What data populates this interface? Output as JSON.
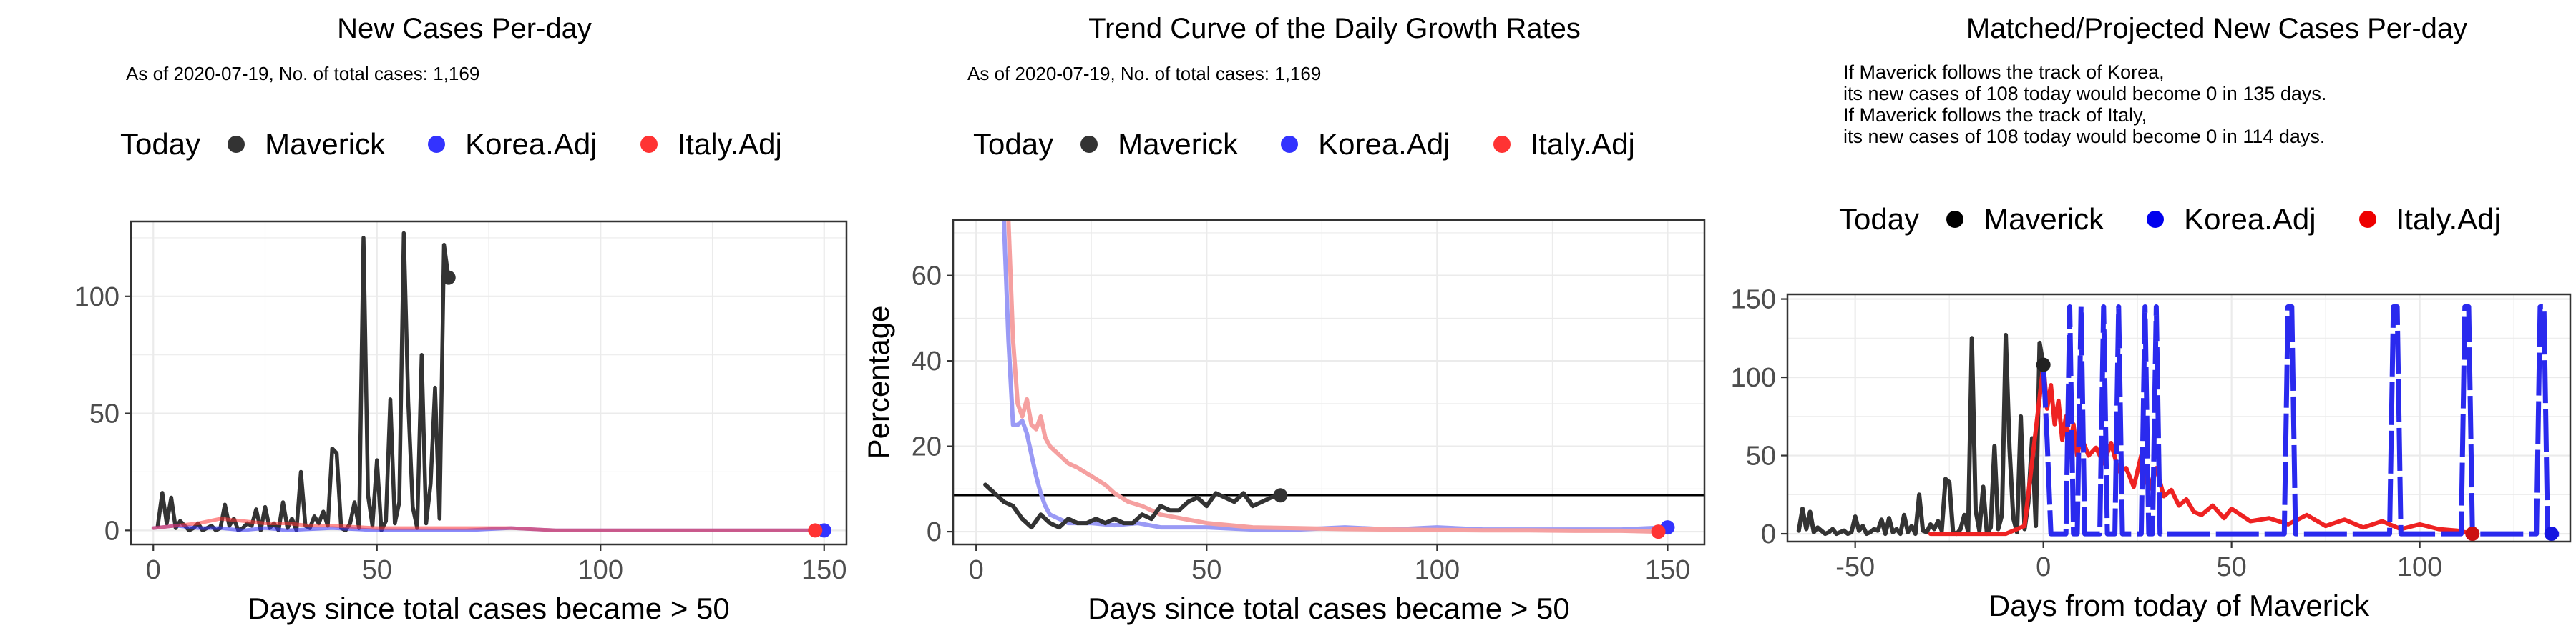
{
  "chart_data": [
    {
      "type": "line",
      "title": "New Cases Per-day",
      "subtitle": "As of 2020-07-19, No. of total cases: 1,169",
      "xlabel": "Days since total cases became > 50",
      "ylabel": "",
      "xlim": [
        -5,
        155
      ],
      "ylim": [
        -6,
        132
      ],
      "xticks": [
        0,
        50,
        100,
        150
      ],
      "yticks": [
        0,
        50,
        100
      ],
      "grid": true,
      "legend_position": "top",
      "legend_title": "Today",
      "legend": [
        {
          "name": "Maverick",
          "color": "#333333"
        },
        {
          "name": "Korea.Adj",
          "color": "#3333ff"
        },
        {
          "name": "Italy.Adj",
          "color": "#ff3333"
        }
      ],
      "series": [
        {
          "name": "Maverick",
          "color": "#333333",
          "x": [
            1,
            2,
            3,
            4,
            5,
            6,
            7,
            8,
            9,
            10,
            11,
            12,
            13,
            14,
            15,
            16,
            17,
            18,
            19,
            20,
            21,
            22,
            23,
            24,
            25,
            26,
            27,
            28,
            29,
            30,
            31,
            32,
            33,
            34,
            35,
            36,
            37,
            38,
            39,
            40,
            41,
            42,
            43,
            44,
            45,
            46,
            47,
            48,
            49,
            50,
            51,
            52,
            53,
            54,
            55,
            56,
            57,
            58,
            59,
            60,
            61,
            62,
            63,
            64,
            65,
            66
          ],
          "y": [
            2,
            16,
            3,
            14,
            1,
            4,
            2,
            0,
            1,
            3,
            0,
            1,
            2,
            0,
            1,
            11,
            2,
            5,
            0,
            1,
            3,
            2,
            9,
            0,
            10,
            1,
            3,
            0,
            12,
            1,
            5,
            0,
            25,
            2,
            1,
            6,
            3,
            8,
            2,
            35,
            33,
            1,
            0,
            3,
            12,
            1,
            125,
            15,
            2,
            30,
            0,
            4,
            56,
            3,
            12,
            127,
            55,
            10,
            1,
            75,
            3,
            20,
            61,
            5,
            122,
            108
          ]
        },
        {
          "name": "Korea.Adj",
          "color": "#3333ff",
          "x": [
            0,
            5,
            10,
            15,
            20,
            25,
            30,
            40,
            50,
            60,
            70,
            80,
            90,
            100,
            110,
            120,
            130,
            140,
            150
          ],
          "y": [
            1,
            2,
            1,
            1,
            0,
            1,
            0,
            1,
            0,
            0,
            0,
            1,
            0,
            0,
            0,
            0,
            0,
            0,
            0
          ]
        },
        {
          "name": "Italy.Adj",
          "color": "#ff3333",
          "x": [
            0,
            5,
            10,
            15,
            20,
            25,
            30,
            35,
            40,
            50,
            60,
            70,
            80,
            90,
            100,
            110,
            120,
            130,
            140,
            148
          ],
          "y": [
            1,
            2,
            3,
            5,
            4,
            3,
            3,
            2,
            2,
            1,
            1,
            1,
            1,
            0,
            0,
            0,
            0,
            0,
            0,
            0
          ]
        }
      ],
      "today_points": [
        {
          "name": "Maverick",
          "x": 66,
          "y": 108,
          "color": "#333333"
        },
        {
          "name": "Korea.Adj",
          "x": 150,
          "y": 0,
          "color": "#3333ff"
        },
        {
          "name": "Italy.Adj",
          "x": 148,
          "y": 0,
          "color": "#ff3333"
        }
      ]
    },
    {
      "type": "line",
      "title": "Trend Curve of the Daily Growth Rates",
      "subtitle": "As of 2020-07-19, No. of total cases: 1,169",
      "xlabel": "Days since total cases became > 50",
      "ylabel": "Percentage",
      "xlim": [
        -5,
        158
      ],
      "ylim": [
        -3,
        73
      ],
      "xticks": [
        0,
        50,
        100,
        150
      ],
      "yticks": [
        0,
        20,
        40,
        60
      ],
      "grid": true,
      "hline": 8.5,
      "legend_position": "top",
      "legend_title": "Today",
      "legend": [
        {
          "name": "Maverick",
          "color": "#333333"
        },
        {
          "name": "Korea.Adj",
          "color": "#3333ff"
        },
        {
          "name": "Italy.Adj",
          "color": "#ff3333"
        }
      ],
      "series": [
        {
          "name": "Korea.Adj",
          "color": "#9a9af5",
          "x": [
            6,
            7,
            8,
            9,
            10,
            11,
            12,
            13,
            14,
            15,
            16,
            18,
            20,
            25,
            30,
            35,
            40,
            45,
            50,
            60,
            70,
            80,
            90,
            100,
            110,
            120,
            130,
            140,
            150
          ],
          "y": [
            73,
            45,
            25,
            25,
            26,
            23,
            18,
            13,
            9,
            6,
            4,
            3,
            2,
            2,
            1.5,
            2,
            1,
            1,
            1,
            0.5,
            0.5,
            1,
            0.5,
            1,
            0.5,
            0.5,
            0.5,
            0.5,
            1
          ]
        },
        {
          "name": "Italy.Adj",
          "color": "#f5a0a0",
          "x": [
            7,
            8,
            9,
            10,
            11,
            12,
            13,
            14,
            15,
            16,
            18,
            20,
            22,
            25,
            28,
            30,
            33,
            36,
            40,
            45,
            50,
            55,
            60,
            70,
            80,
            90,
            100,
            110,
            120,
            130,
            140,
            148
          ],
          "y": [
            73,
            45,
            30,
            27,
            31,
            25,
            24,
            27,
            22,
            20,
            18,
            16,
            15,
            13,
            11,
            9,
            7,
            6,
            4,
            3,
            2,
            1.5,
            1,
            0.8,
            0.6,
            0.5,
            0.4,
            0.3,
            0.3,
            0.2,
            0.2,
            0
          ]
        },
        {
          "name": "Maverick",
          "color": "#333333",
          "x": [
            2,
            4,
            6,
            8,
            10,
            12,
            14,
            16,
            18,
            20,
            22,
            24,
            26,
            28,
            30,
            32,
            34,
            36,
            38,
            40,
            42,
            44,
            46,
            48,
            50,
            52,
            54,
            56,
            58,
            60,
            62,
            64,
            66
          ],
          "y": [
            11,
            9,
            7,
            6,
            3,
            1,
            4,
            2,
            1,
            3,
            2,
            2,
            3,
            2,
            3,
            2,
            2,
            4,
            3,
            6,
            5,
            5,
            7,
            8,
            6,
            9,
            8,
            7,
            9,
            6,
            7,
            8,
            8.5
          ]
        }
      ],
      "today_points": [
        {
          "name": "Maverick",
          "x": 66,
          "y": 8.5,
          "color": "#333333"
        },
        {
          "name": "Korea.Adj",
          "x": 150,
          "y": 1,
          "color": "#3333ff"
        },
        {
          "name": "Italy.Adj",
          "x": 148,
          "y": 0,
          "color": "#ff3333"
        }
      ]
    },
    {
      "type": "line",
      "title": "Matched/Projected New Cases Per-day",
      "notes": [
        "If Maverick follows the track of Korea,",
        "its new cases of 108 today would become 0 in 135 days.",
        "If Maverick follows the track of Italy,",
        "its new cases of 108 today would become 0 in 114 days."
      ],
      "xlabel": "Days from today of Maverick",
      "ylabel": "",
      "xlim": [
        -68,
        140
      ],
      "ylim": [
        -5,
        153
      ],
      "xticks": [
        -50,
        0,
        50,
        100
      ],
      "yticks": [
        0,
        50,
        100,
        150
      ],
      "grid": true,
      "legend_position": "top",
      "legend_title": "Today",
      "legend": [
        {
          "name": "Maverick",
          "color": "#000000"
        },
        {
          "name": "Korea.Adj",
          "color": "#0000ee"
        },
        {
          "name": "Italy.Adj",
          "color": "#ee0000"
        }
      ],
      "series": [
        {
          "name": "Maverick",
          "color": "#333333",
          "x": [
            -65,
            -64,
            -63,
            -62,
            -61,
            -60,
            -59,
            -58,
            -57,
            -56,
            -55,
            -54,
            -53,
            -52,
            -51,
            -50,
            -49,
            -48,
            -47,
            -46,
            -45,
            -44,
            -43,
            -42,
            -41,
            -40,
            -39,
            -38,
            -37,
            -36,
            -35,
            -34,
            -33,
            -32,
            -31,
            -30,
            -29,
            -28,
            -27,
            -26,
            -25,
            -24,
            -23,
            -22,
            -21,
            -20,
            -19,
            -18,
            -17,
            -16,
            -15,
            -14,
            -13,
            -12,
            -11,
            -10,
            -9,
            -8,
            -7,
            -6,
            -5,
            -4,
            -3,
            -2,
            -1,
            0
          ],
          "y": [
            2,
            16,
            3,
            14,
            1,
            4,
            2,
            0,
            1,
            3,
            0,
            1,
            2,
            0,
            1,
            11,
            2,
            5,
            0,
            1,
            3,
            2,
            9,
            0,
            10,
            1,
            3,
            0,
            12,
            1,
            5,
            0,
            25,
            2,
            1,
            6,
            3,
            8,
            2,
            35,
            33,
            1,
            0,
            3,
            12,
            1,
            125,
            15,
            2,
            30,
            0,
            4,
            56,
            3,
            12,
            127,
            55,
            10,
            1,
            75,
            3,
            20,
            61,
            5,
            122,
            108
          ]
        },
        {
          "name": "Italy.Adj",
          "color": "#ee2222",
          "x": [
            -30,
            -20,
            -10,
            -5,
            0,
            1,
            2,
            3,
            4,
            5,
            6,
            7,
            8,
            9,
            10,
            12,
            14,
            16,
            18,
            20,
            22,
            24,
            26,
            28,
            30,
            32,
            34,
            36,
            38,
            40,
            42,
            45,
            48,
            50,
            55,
            60,
            65,
            70,
            75,
            80,
            85,
            90,
            95,
            100,
            105,
            110,
            114
          ],
          "y": [
            0,
            0,
            0,
            5,
            108,
            80,
            95,
            70,
            85,
            60,
            75,
            55,
            70,
            50,
            62,
            50,
            55,
            45,
            58,
            40,
            42,
            30,
            50,
            28,
            42,
            24,
            28,
            18,
            22,
            14,
            12,
            18,
            10,
            16,
            8,
            10,
            6,
            12,
            5,
            9,
            4,
            8,
            3,
            6,
            3,
            2,
            0
          ]
        },
        {
          "name": "Korea.Adj",
          "color": "#2a2aee",
          "dashed": true,
          "x": [
            0,
            1,
            2,
            3,
            4,
            5,
            6,
            7,
            8,
            9,
            10,
            11,
            12,
            13,
            14,
            15,
            16,
            17,
            18,
            19,
            20,
            21,
            22,
            23,
            24,
            25,
            26,
            27,
            28,
            29,
            30,
            31,
            32,
            35,
            40,
            50,
            60,
            64,
            65,
            66,
            67,
            68,
            70,
            80,
            90,
            92,
            93,
            94,
            95,
            96,
            98,
            100,
            110,
            111,
            112,
            113,
            114,
            115,
            118,
            125,
            130,
            131,
            132,
            133,
            134,
            135,
            137
          ],
          "y": [
            108,
            60,
            0,
            0,
            0,
            0,
            0,
            145,
            0,
            0,
            145,
            0,
            0,
            0,
            0,
            0,
            145,
            0,
            0,
            0,
            145,
            0,
            0,
            0,
            0,
            0,
            0,
            145,
            0,
            0,
            145,
            0,
            0,
            0,
            0,
            0,
            0,
            0,
            145,
            145,
            0,
            0,
            0,
            0,
            0,
            0,
            145,
            145,
            0,
            0,
            0,
            0,
            0,
            0,
            145,
            145,
            0,
            0,
            0,
            0,
            0,
            0,
            145,
            145,
            0,
            0,
            0
          ]
        }
      ],
      "today_points": [
        {
          "name": "Maverick",
          "x": 0,
          "y": 108,
          "color": "#222222"
        },
        {
          "name": "Korea.Adj",
          "x": 135,
          "y": 0,
          "color": "#1515e0"
        },
        {
          "name": "Italy.Adj",
          "x": 114,
          "y": 0,
          "color": "#cc1111"
        }
      ]
    }
  ]
}
